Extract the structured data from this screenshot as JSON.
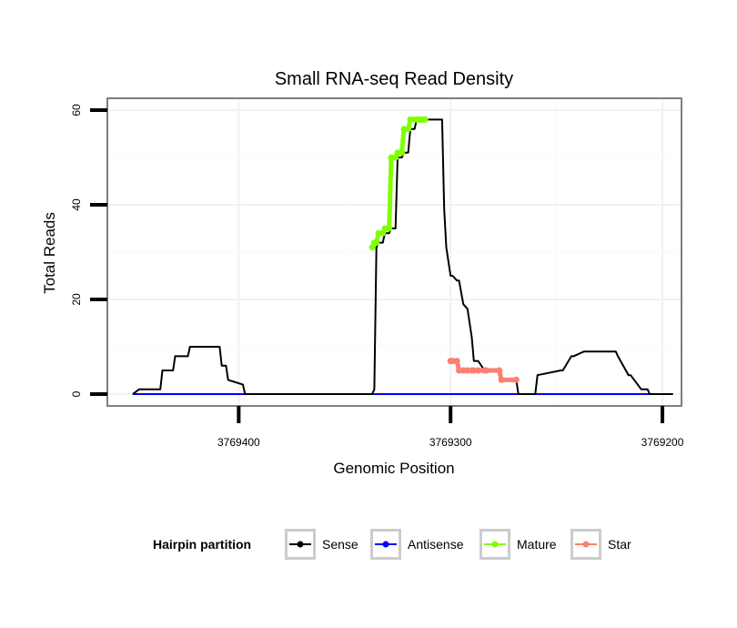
{
  "chart_data": {
    "type": "line",
    "title": "Small RNA-seq Read Density",
    "xlabel": "Genomic Position",
    "ylabel": "Total Reads",
    "x_reversed": true,
    "xlim": [
      3769462,
      3769191
    ],
    "ylim": [
      -2.5,
      62.5
    ],
    "x_ticks": [
      3769400,
      3769300,
      3769200
    ],
    "x_tick_labels": [
      "3769400",
      "3769300",
      "3769200"
    ],
    "y_ticks": [
      0,
      20,
      40,
      60
    ],
    "y_tick_labels": [
      "0",
      "20",
      "40",
      "60"
    ],
    "grid": true,
    "legend": {
      "title": "Hairpin partition",
      "position": "bottom",
      "entries": [
        "Sense",
        "Antisense",
        "Mature",
        "Star"
      ]
    },
    "series": [
      {
        "name": "Sense",
        "color": "#000000",
        "x": [
          3769450,
          3769447,
          3769437,
          3769436,
          3769431,
          3769430,
          3769424,
          3769423,
          3769409,
          3769408,
          3769406,
          3769405,
          3769398,
          3769397,
          3769337,
          3769336,
          3769335,
          3769334,
          3769332,
          3769331,
          3769329,
          3769328,
          3769326,
          3769325,
          3769323,
          3769322,
          3769320,
          3769319,
          3769317,
          3769316,
          3769315,
          3769314,
          3769313,
          3769312,
          3769304,
          3769303,
          3769302,
          3769300,
          3769299,
          3769297,
          3769296,
          3769294,
          3769292,
          3769290,
          3769289,
          3769287,
          3769284,
          3769283,
          3769277,
          3769276,
          3769269,
          3769268,
          3769266,
          3769265,
          3769260,
          3769259,
          3769248,
          3769247,
          3769243,
          3769242,
          3769237,
          3769236,
          3769222,
          3769221,
          3769216,
          3769215,
          3769210,
          3769209,
          3769207,
          3769206,
          3769195
        ],
        "y": [
          0,
          1,
          1,
          5,
          5,
          8,
          8,
          10,
          10,
          6,
          6,
          3,
          2,
          0,
          0,
          1,
          31,
          32,
          32,
          34,
          34,
          35,
          35,
          50,
          50,
          51,
          51,
          56,
          56,
          58,
          58,
          58,
          58,
          58,
          58,
          39,
          31,
          25,
          25,
          24,
          24,
          19,
          18,
          12,
          7,
          7,
          5,
          5,
          5,
          3,
          3,
          0,
          0,
          0,
          0,
          4,
          5,
          5,
          8,
          8,
          9,
          9,
          9,
          8,
          4,
          4,
          1,
          1,
          1,
          0,
          0
        ]
      },
      {
        "name": "Antisense",
        "color": "#0000ff",
        "x": [
          3769450,
          3769197
        ],
        "y": [
          0,
          0
        ]
      },
      {
        "name": "Mature",
        "color": "#7fff00",
        "x": [
          3769337,
          3769336,
          3769335,
          3769334,
          3769332,
          3769331,
          3769329,
          3769328,
          3769326,
          3769325,
          3769323,
          3769322,
          3769320,
          3769319,
          3769317,
          3769316,
          3769315,
          3769314,
          3769313,
          3769312
        ],
        "y": [
          31,
          32,
          32,
          34,
          34,
          35,
          35,
          50,
          50,
          51,
          51,
          56,
          56,
          58,
          58,
          58,
          58,
          58,
          58,
          58
        ]
      },
      {
        "name": "Star",
        "color": "#fa8072",
        "x": [
          3769300,
          3769299,
          3769297,
          3769296,
          3769294,
          3769292,
          3769290,
          3769289,
          3769287,
          3769284,
          3769283,
          3769277,
          3769276,
          3769269
        ],
        "y": [
          7,
          7,
          7,
          5,
          5,
          5,
          5,
          5,
          5,
          5,
          5,
          5,
          3,
          3
        ]
      }
    ]
  }
}
